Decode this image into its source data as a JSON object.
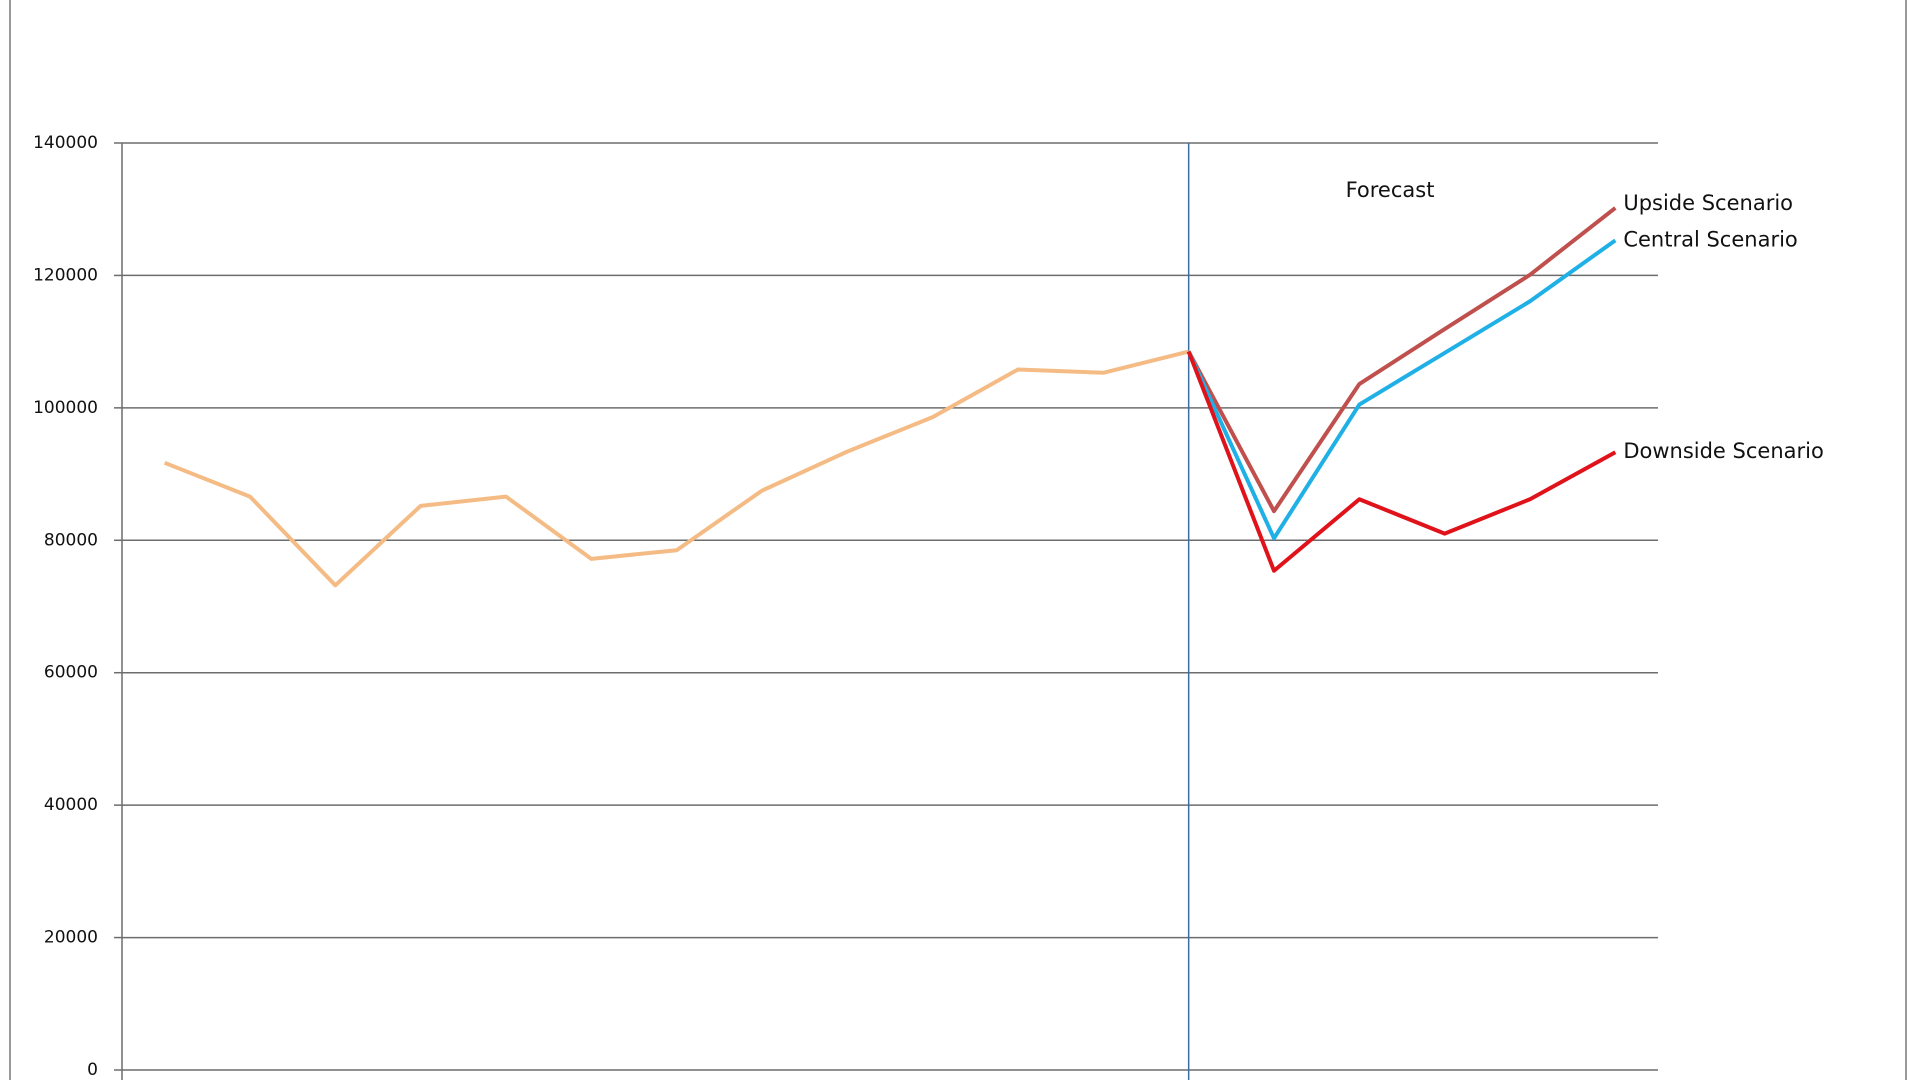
{
  "chart_data": {
    "type": "line",
    "categories": [
      null,
      null,
      null,
      null,
      null,
      null,
      null,
      null,
      null,
      null,
      null,
      null,
      null,
      null,
      null,
      null,
      null,
      null
    ],
    "series": [
      {
        "color": "#f5bb85",
        "values": [
          91700,
          86600,
          73200,
          85200,
          86600,
          77200,
          78500,
          87500,
          93400,
          98600,
          105800,
          105300,
          108500,
          null,
          null,
          null,
          null,
          null
        ]
      },
      {
        "name": "Upside Scenario",
        "color": "#c0504d",
        "values": [
          null,
          null,
          null,
          null,
          null,
          null,
          null,
          null,
          null,
          null,
          null,
          null,
          108500,
          84400,
          103600,
          111900,
          120100,
          130200
        ]
      },
      {
        "name": "Central Scenario",
        "color": "#1fb0e6",
        "values": [
          null,
          null,
          null,
          null,
          null,
          null,
          null,
          null,
          null,
          null,
          null,
          null,
          108500,
          80300,
          100500,
          108300,
          116100,
          125300
        ]
      },
      {
        "name": "Downside Scenario",
        "color": "#e0121a",
        "values": [
          null,
          null,
          null,
          null,
          null,
          null,
          null,
          null,
          null,
          null,
          null,
          null,
          108500,
          75400,
          86200,
          81000,
          86200,
          93300
        ]
      }
    ],
    "annotation": "Forecast",
    "ylim": [
      0,
      140000
    ],
    "yticks": [
      0,
      20000,
      40000,
      60000,
      80000,
      100000,
      120000,
      140000
    ],
    "grid": true
  }
}
